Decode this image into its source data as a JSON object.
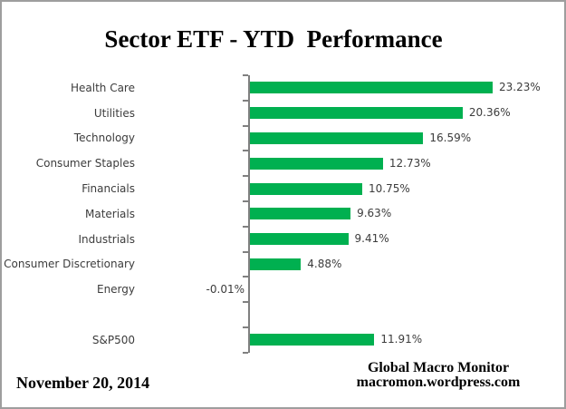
{
  "title": "Sector ETF - YTD  Performance",
  "chart_data": {
    "type": "bar",
    "orientation": "horizontal",
    "title": "Sector ETF - YTD  Performance",
    "categories": [
      "Health Care",
      "Utilities",
      "Technology",
      "Consumer Staples",
      "Financials",
      "Materials",
      "Industrials",
      "Consumer Discretionary",
      "Energy",
      "",
      "S&P500"
    ],
    "values": [
      23.23,
      20.36,
      16.59,
      12.73,
      10.75,
      9.63,
      9.41,
      4.88,
      -0.01,
      null,
      11.91
    ],
    "data_labels": [
      "23.23%",
      "20.36%",
      "16.59%",
      "12.73%",
      "10.75%",
      "9.63%",
      "9.41%",
      "4.88%",
      "-0.01%",
      "",
      "11.91%"
    ],
    "unit": "%",
    "xlim": [
      0,
      23.23
    ],
    "grid": false,
    "legend": false,
    "value_axis_labels_shown": false
  },
  "colors": {
    "bar": "#00b050",
    "axis": "#808080",
    "label_text": "#3c3c3c",
    "title_text": "#000000",
    "frame_border": "#9e9e9e"
  },
  "footer": {
    "date": "November 20, 2014",
    "source_line1": "Global Macro Monitor",
    "source_line2": "macromon.wordpress.com"
  }
}
